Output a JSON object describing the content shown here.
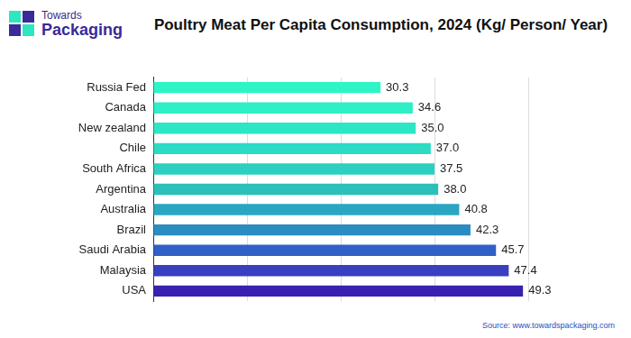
{
  "chart_data": {
    "type": "bar",
    "title": "Poultry Meat Per Capita Consumption, 2024 (Kg/ Person/ Year)",
    "annotations": [
      "Towards",
      "Packaging",
      "Source: www.towardspackaging.com"
    ],
    "orientation": "horizontal",
    "categories": [
      "Russia Fed",
      "Canada",
      "New zealand",
      "Chile",
      "South Africa",
      "Argentina",
      "Australia",
      "Brazil",
      "Saudi Arabia",
      "Malaysia",
      "USA"
    ],
    "values": [
      30.3,
      34.6,
      35.0,
      37.0,
      37.5,
      38.0,
      40.8,
      42.3,
      45.7,
      47.4,
      49.3
    ],
    "value_labels": [
      "30.3",
      "34.6",
      "35.0",
      "37.0",
      "37.5",
      "38.0",
      "40.8",
      "42.3",
      "45.7",
      "47.4",
      "49.3"
    ],
    "colors": [
      "#2ef5c6",
      "#2eefc6",
      "#2de6c6",
      "#2cdbc3",
      "#2cd0c0",
      "#2bc0ba",
      "#2aa6c2",
      "#2b8cc2",
      "#2f60c8",
      "#3a3ec0",
      "#3a20b0"
    ],
    "xlim": [
      0,
      50
    ],
    "xticks": [
      0,
      12.5,
      25,
      37.5,
      50
    ],
    "grid": true,
    "data_labels": true,
    "tick_labels": "y"
  }
}
